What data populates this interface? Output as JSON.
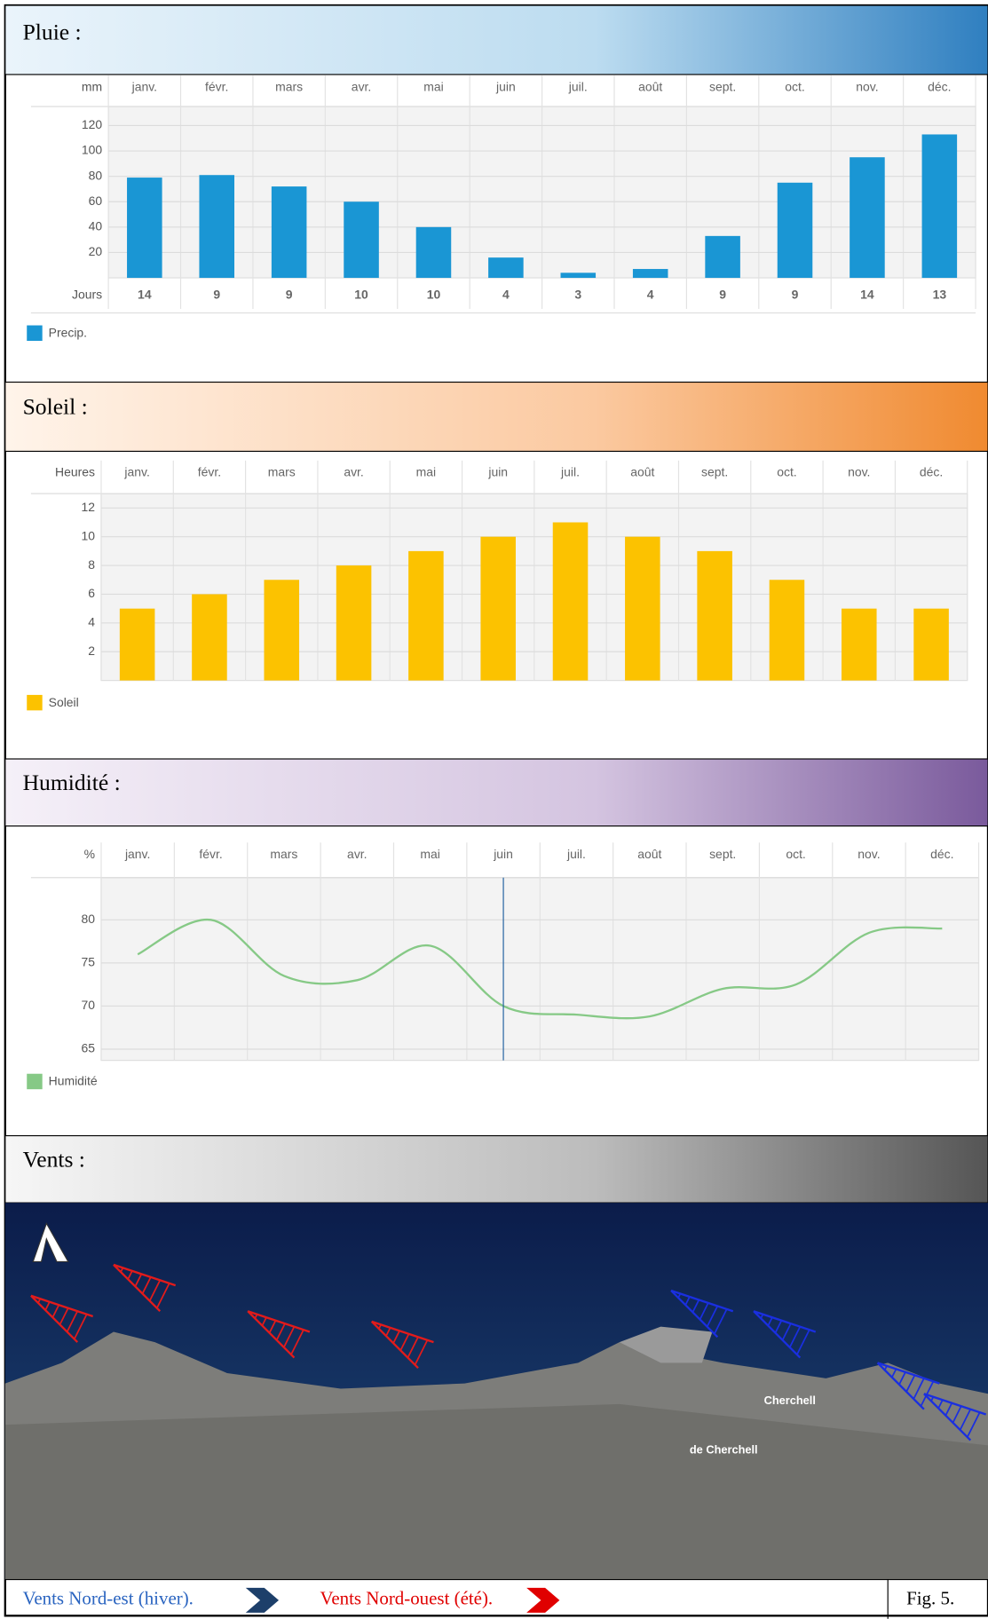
{
  "sections": [
    {
      "title": "Pluie :"
    },
    {
      "title": "Soleil :"
    },
    {
      "title": "Humidité :"
    },
    {
      "title": "Vents :"
    }
  ],
  "chart_data": [
    {
      "type": "bar",
      "y_unit": "mm",
      "categories": [
        "janv.",
        "févr.",
        "mars",
        "avr.",
        "mai",
        "juin",
        "juil.",
        "août",
        "sept.",
        "oct.",
        "nov.",
        "déc."
      ],
      "series": [
        {
          "name": "Precip.",
          "color": "#1a96d4",
          "values": [
            79,
            81,
            72,
            60,
            40,
            16,
            4,
            7,
            33,
            75,
            95,
            113
          ]
        }
      ],
      "ylim": [
        0,
        135
      ],
      "yticks": [
        20,
        40,
        60,
        80,
        100,
        120
      ],
      "grid": true,
      "row": {
        "label": "Jours",
        "values": [
          14,
          9,
          9,
          10,
          10,
          4,
          3,
          4,
          9,
          9,
          14,
          13
        ]
      }
    },
    {
      "type": "bar",
      "y_unit": "Heures",
      "categories": [
        "janv.",
        "févr.",
        "mars",
        "avr.",
        "mai",
        "juin",
        "juil.",
        "août",
        "sept.",
        "oct.",
        "nov.",
        "déc."
      ],
      "series": [
        {
          "name": "Soleil",
          "color": "#fcc200",
          "values": [
            5,
            6,
            7,
            8,
            9,
            10,
            11,
            10,
            9,
            7,
            5,
            5
          ]
        }
      ],
      "ylim": [
        0,
        13
      ],
      "yticks": [
        2,
        4,
        6,
        8,
        10,
        12
      ],
      "grid": true
    },
    {
      "type": "line",
      "y_unit": "%",
      "categories": [
        "janv.",
        "févr.",
        "mars",
        "avr.",
        "mai",
        "juin",
        "juil.",
        "août",
        "sept.",
        "oct.",
        "nov.",
        "déc."
      ],
      "series": [
        {
          "name": "Humidité",
          "color": "#86c986",
          "values": [
            76,
            80,
            73.5,
            73,
            77,
            70,
            69,
            68.8,
            72,
            72.5,
            78.5,
            79
          ]
        }
      ],
      "ylim": [
        63.7,
        84.9
      ],
      "yticks": [
        65,
        70,
        75,
        80
      ],
      "grid": true
    }
  ],
  "map": {
    "labels": [
      "Cherchell",
      "de Cherchell"
    ]
  },
  "footer": {
    "legend": [
      "Vents Nord-est (hiver).",
      "Vents Nord-ouest (été)."
    ],
    "figure": "Fig. 5."
  }
}
